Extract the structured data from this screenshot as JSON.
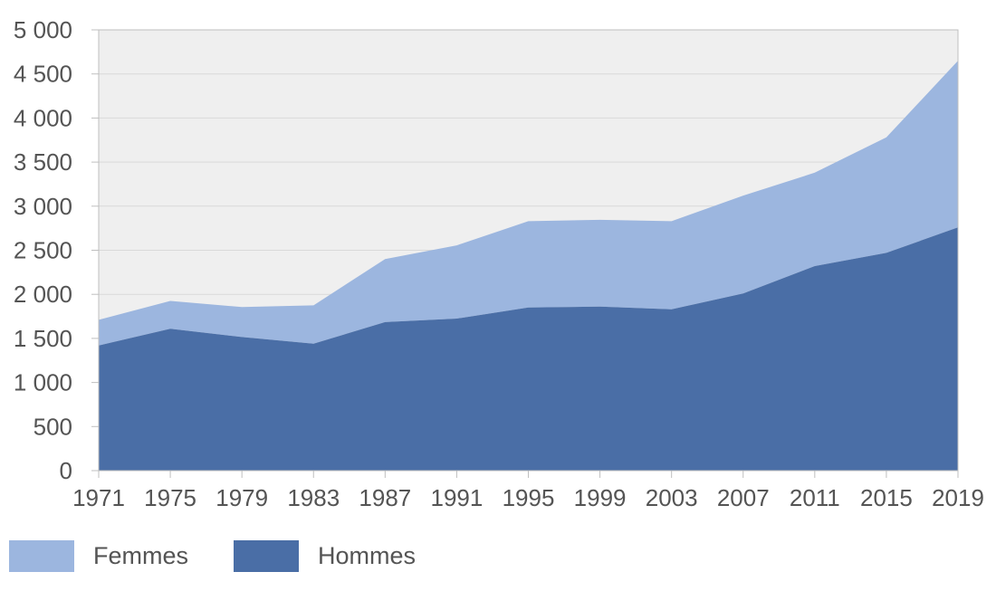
{
  "chart_data": {
    "type": "area",
    "stacked": true,
    "title": "",
    "xlabel": "",
    "ylabel": "",
    "categories": [
      "1971",
      "1975",
      "1979",
      "1983",
      "1987",
      "1991",
      "1995",
      "1999",
      "2003",
      "2007",
      "2011",
      "2015",
      "2019"
    ],
    "series": [
      {
        "name": "Femmes",
        "color": "#9CB6DF",
        "values": [
          290,
          315,
          340,
          435,
          715,
          830,
          980,
          985,
          1000,
          1110,
          1060,
          1310,
          1890
        ]
      },
      {
        "name": "Hommes",
        "color": "#4A6EA6",
        "values": [
          1420,
          1610,
          1515,
          1440,
          1685,
          1725,
          1850,
          1860,
          1830,
          2010,
          2320,
          2470,
          2760
        ]
      }
    ],
    "stack_bottom_series": "Hommes",
    "stacked_totals": [
      1710,
      1925,
      1855,
      1875,
      2400,
      2555,
      2830,
      2845,
      2830,
      3120,
      3380,
      3780,
      4650
    ],
    "ylim": [
      0,
      5000
    ],
    "y_ticks": [
      {
        "value": 0,
        "label": "0"
      },
      {
        "value": 500,
        "label": "500"
      },
      {
        "value": 1000,
        "label": "1 000"
      },
      {
        "value": 1500,
        "label": "1 500"
      },
      {
        "value": 2000,
        "label": "2 000"
      },
      {
        "value": 2500,
        "label": "2 500"
      },
      {
        "value": 3000,
        "label": "3 000"
      },
      {
        "value": 3500,
        "label": "3 500"
      },
      {
        "value": 4000,
        "label": "4 000"
      },
      {
        "value": 4500,
        "label": "4 500"
      },
      {
        "value": 5000,
        "label": "5 000"
      }
    ],
    "grid": "horizontal",
    "legend_position": "bottom-left",
    "colors": {
      "plot_bg": "#EFEFEF",
      "gridline": "#D9D9D9",
      "border": "#BFBFBF",
      "tick": "#BFBFBF",
      "text": "#545454"
    }
  }
}
